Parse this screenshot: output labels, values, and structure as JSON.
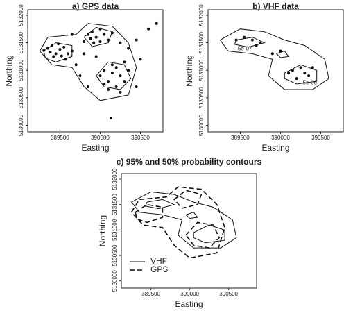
{
  "chart_data": [
    {
      "type": "contour",
      "title": "a) GPS data",
      "xlabel": "Easting",
      "ylabel": "Northing",
      "xlim": [
        389100,
        390780
      ],
      "ylim": [
        5129880,
        5132100
      ],
      "xticks": [
        389500,
        390000,
        390500
      ],
      "yticks": [
        5130000,
        5130500,
        5131000,
        5131500,
        5132000
      ],
      "points": {
        "x": [
          389350,
          389400,
          389450,
          389500,
          389550,
          389600,
          389420,
          389380,
          389480,
          389520,
          389300,
          389650,
          389570,
          389850,
          389900,
          389950,
          390000,
          390050,
          390100,
          389920,
          389880,
          390150,
          390000,
          389800,
          390000,
          390050,
          390100,
          390150,
          390200,
          390250,
          390300,
          390200,
          390100,
          390350,
          390150,
          390050,
          390250,
          390300,
          389700,
          389750,
          389800,
          390350,
          390450,
          390600,
          390700,
          389950,
          389850,
          390450,
          390134,
          389650,
          390250,
          390500
        ],
        "y": [
          5131400,
          5131450,
          5131300,
          5131380,
          5131420,
          5131300,
          5131250,
          5131330,
          5131480,
          5131260,
          5131360,
          5131350,
          5131200,
          5131650,
          5131700,
          5131600,
          5131750,
          5131650,
          5131550,
          5131500,
          5131580,
          5131680,
          5131520,
          5131520,
          5130900,
          5131000,
          5130800,
          5130950,
          5131050,
          5130900,
          5130800,
          5130700,
          5130650,
          5131000,
          5131100,
          5130750,
          5130600,
          5131150,
          5131100,
          5130900,
          5131300,
          5131400,
          5131550,
          5131750,
          5131850,
          5131250,
          5130700,
          5130700,
          5130134,
          5131650,
          5131500,
          5131200
        ]
      },
      "series": [
        {
          "dash": false,
          "contours": [
            {
              "x": [
                389250,
                389350,
                389700,
                389850,
                390150,
                390350,
                390450,
                390350,
                390000,
                389800,
                389650,
                389400
              ],
              "y": [
                5131350,
                5131600,
                5131650,
                5131850,
                5131800,
                5131500,
                5131050,
                5130550,
                5130450,
                5130700,
                5131050,
                5131100
              ]
            },
            {
              "x": [
                389300,
                389450,
                389650,
                389650,
                389450,
                389320
              ],
              "y": [
                5131350,
                5131500,
                5131450,
                5131250,
                5131150,
                5131220
              ]
            },
            {
              "x": [
                389800,
                389950,
                390150,
                390100,
                389900
              ],
              "y": [
                5131600,
                5131780,
                5131700,
                5131500,
                5131430
              ]
            },
            {
              "x": [
                389950,
                390100,
                390300,
                390380,
                390250,
                390050
              ],
              "y": [
                5130900,
                5131150,
                5131100,
                5130850,
                5130650,
                5130700
              ]
            }
          ]
        }
      ]
    },
    {
      "type": "contour",
      "title": "b) VHF data",
      "xlabel": "Easting",
      "ylabel": "Northing",
      "xlim": [
        389100,
        390780
      ],
      "ylim": [
        5129880,
        5132100
      ],
      "xticks": [
        389500,
        390000,
        390500
      ],
      "yticks": [
        5130000,
        5130500,
        5131000,
        5131500,
        5132000
      ],
      "points": {
        "x": [
          389450,
          389550,
          389650,
          389700,
          389900,
          390000,
          390100,
          390150,
          390250,
          390300,
          390350,
          390200,
          389750,
          390400
        ],
        "y": [
          5131550,
          5131600,
          5131550,
          5131450,
          5131300,
          5131350,
          5130950,
          5131000,
          5131050,
          5130950,
          5130900,
          5130850,
          5131500,
          5131050
        ]
      },
      "annotations": [
        "5e-07",
        "5e-06"
      ],
      "series": [
        {
          "dash": false,
          "contours": [
            {
              "x": [
                389250,
                389500,
                389800,
                390050,
                390300,
                390550,
                390600,
                390400,
                390050,
                389850,
                389900,
                389650,
                389350
              ],
              "y": [
                5131550,
                5131750,
                5131700,
                5131550,
                5131450,
                5131200,
                5130850,
                5130650,
                5130650,
                5130900,
                5131200,
                5131300,
                5131350
              ]
            },
            {
              "x": [
                389450,
                389650,
                389800,
                389600,
                389430
              ],
              "y": [
                5131550,
                5131600,
                5131500,
                5131420,
                5131470
              ]
            },
            {
              "x": [
                390050,
                390250,
                390450,
                390450,
                390200,
                390050
              ],
              "y": [
                5130950,
                5131100,
                5131000,
                5130800,
                5130750,
                5130850
              ]
            },
            {
              "x": [
                389950,
                390050,
                390100,
                390000
              ],
              "y": [
                5131300,
                5131350,
                5131250,
                5131230
              ]
            }
          ]
        }
      ]
    },
    {
      "type": "contour",
      "title": "c) 95% and 50% probability contours",
      "xlabel": "Easting",
      "ylabel": "Northing",
      "xlim": [
        389120,
        390860
      ],
      "ylim": [
        5129860,
        5132110
      ],
      "xticks": [
        389500,
        390000,
        390500
      ],
      "yticks": [
        5130000,
        5130500,
        5131000,
        5131500,
        5132000
      ],
      "legend": "lower left",
      "series": [
        {
          "name": "VHF",
          "dash": false,
          "contours": [
            {
              "x": [
                389250,
                389500,
                389800,
                390050,
                390300,
                390550,
                390600,
                390400,
                390050,
                389850,
                389900,
                389650,
                389350
              ],
              "y": [
                5131550,
                5131750,
                5131700,
                5131550,
                5131450,
                5131200,
                5130850,
                5130650,
                5130650,
                5130900,
                5131200,
                5131300,
                5131350
              ]
            },
            {
              "x": [
                389450,
                389650,
                389800,
                389600,
                389430
              ],
              "y": [
                5131550,
                5131600,
                5131500,
                5131420,
                5131470
              ]
            },
            {
              "x": [
                390050,
                390250,
                390450,
                390450,
                390200,
                390050
              ],
              "y": [
                5130950,
                5131100,
                5131000,
                5130800,
                5130750,
                5130850
              ]
            },
            {
              "x": [
                389950,
                390050,
                390100,
                390000
              ],
              "y": [
                5131300,
                5131350,
                5131250,
                5131230
              ]
            }
          ]
        },
        {
          "name": "GPS",
          "dash": true,
          "contours": [
            {
              "x": [
                389250,
                389350,
                389700,
                389850,
                390150,
                390350,
                390450,
                390350,
                390000,
                389800,
                389650,
                389400
              ],
              "y": [
                5131350,
                5131600,
                5131650,
                5131850,
                5131800,
                5131500,
                5131050,
                5130550,
                5130450,
                5130700,
                5131050,
                5131100
              ]
            },
            {
              "x": [
                389300,
                389450,
                389650,
                389650,
                389450,
                389320
              ],
              "y": [
                5131350,
                5131500,
                5131450,
                5131250,
                5131150,
                5131220
              ]
            },
            {
              "x": [
                389800,
                389950,
                390150,
                390100,
                389900
              ],
              "y": [
                5131600,
                5131780,
                5131700,
                5131500,
                5131430
              ]
            },
            {
              "x": [
                389950,
                390100,
                390300,
                390380,
                390250,
                390050
              ],
              "y": [
                5130900,
                5131150,
                5131100,
                5130850,
                5130650,
                5130700
              ]
            }
          ]
        }
      ]
    }
  ]
}
